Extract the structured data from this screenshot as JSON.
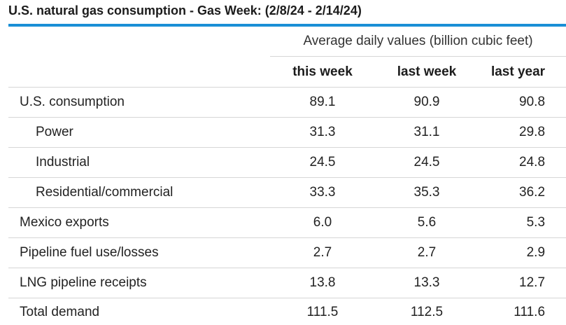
{
  "title": "U.S. natural gas consumption - Gas Week: (2/8/24 - 2/14/24)",
  "units_header": "Average daily values (billion cubic feet)",
  "columns": [
    "this week",
    "last week",
    "last year"
  ],
  "colors": {
    "title_rule": "#1a8fd6",
    "row_divider": "#d6d6d6"
  },
  "rows": [
    {
      "label": "U.S. consumption",
      "indent": false,
      "values": [
        "89.1",
        "90.9",
        "90.8"
      ]
    },
    {
      "label": "Power",
      "indent": true,
      "values": [
        "31.3",
        "31.1",
        "29.8"
      ]
    },
    {
      "label": "Industrial",
      "indent": true,
      "values": [
        "24.5",
        "24.5",
        "24.8"
      ]
    },
    {
      "label": "Residential/commercial",
      "indent": true,
      "values": [
        "33.3",
        "35.3",
        "36.2"
      ]
    },
    {
      "label": "Mexico exports",
      "indent": false,
      "values": [
        "6.0",
        "5.6",
        "5.3"
      ]
    },
    {
      "label": "Pipeline fuel use/losses",
      "indent": false,
      "values": [
        "2.7",
        "2.7",
        "2.9"
      ]
    },
    {
      "label": "LNG pipeline receipts",
      "indent": false,
      "values": [
        "13.8",
        "13.3",
        "12.7"
      ]
    },
    {
      "label": "Total demand",
      "indent": false,
      "values": [
        "111.5",
        "112.5",
        "111.6"
      ]
    }
  ]
}
